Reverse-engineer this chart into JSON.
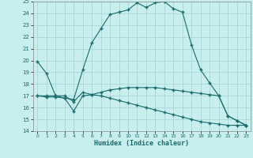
{
  "xlabel": "Humidex (Indice chaleur)",
  "ylabel": "",
  "bg_color": "#c8eeee",
  "line_color": "#1a6b6b",
  "grid_color": "#a8d8d8",
  "xlim": [
    -0.5,
    23.5
  ],
  "ylim": [
    14,
    25
  ],
  "xticks": [
    0,
    1,
    2,
    3,
    4,
    5,
    6,
    7,
    8,
    9,
    10,
    11,
    12,
    13,
    14,
    15,
    16,
    17,
    18,
    19,
    20,
    21,
    22,
    23
  ],
  "yticks": [
    14,
    15,
    16,
    17,
    18,
    19,
    20,
    21,
    22,
    23,
    24,
    25
  ],
  "line1_x": [
    0,
    1,
    2,
    3,
    4,
    5,
    6,
    7,
    8,
    9,
    10,
    11,
    12,
    13,
    14,
    15,
    16,
    17,
    18,
    19,
    20,
    21,
    22,
    23
  ],
  "line1_y": [
    19.9,
    18.9,
    17.0,
    16.8,
    16.7,
    19.2,
    21.5,
    22.7,
    23.9,
    24.1,
    24.3,
    24.9,
    24.5,
    24.9,
    25.0,
    24.4,
    24.1,
    21.3,
    19.2,
    18.1,
    17.0,
    15.3,
    14.9,
    14.5
  ],
  "line2_x": [
    0,
    1,
    2,
    3,
    4,
    5,
    6,
    7,
    8,
    9,
    10,
    11,
    12,
    13,
    14,
    15,
    16,
    17,
    18,
    19,
    20,
    21,
    22,
    23
  ],
  "line2_y": [
    17.0,
    16.9,
    16.9,
    16.8,
    15.7,
    17.0,
    17.1,
    17.3,
    17.5,
    17.6,
    17.7,
    17.7,
    17.7,
    17.7,
    17.6,
    17.5,
    17.4,
    17.3,
    17.2,
    17.1,
    17.0,
    15.3,
    14.9,
    14.5
  ],
  "line3_x": [
    0,
    1,
    2,
    3,
    4,
    5,
    6,
    7,
    8,
    9,
    10,
    11,
    12,
    13,
    14,
    15,
    16,
    17,
    18,
    19,
    20,
    21,
    22,
    23
  ],
  "line3_y": [
    17.0,
    17.0,
    17.0,
    17.0,
    16.5,
    17.3,
    17.1,
    17.0,
    16.8,
    16.6,
    16.4,
    16.2,
    16.0,
    15.8,
    15.6,
    15.4,
    15.2,
    15.0,
    14.8,
    14.7,
    14.6,
    14.5,
    14.5,
    14.5
  ]
}
